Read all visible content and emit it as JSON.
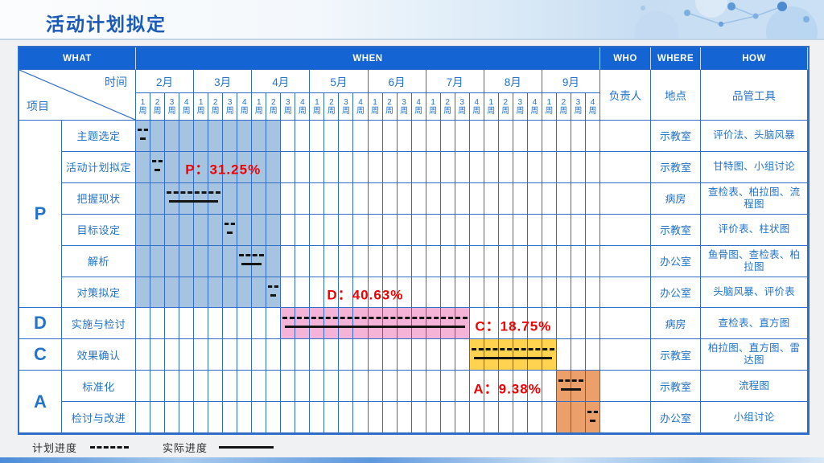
{
  "title": "活动计划拟定",
  "header_band": {
    "what": "WHAT",
    "when": "WHEN",
    "who": "WHO",
    "where": "WHERE",
    "how": "HOW"
  },
  "corner": {
    "time_label": "时间",
    "project_label": "项目"
  },
  "sub_headers": {
    "who": "负责人",
    "where": "地点",
    "how": "品管工具"
  },
  "legend": {
    "plan_label": "计划进度",
    "actual_label": "实际进度"
  },
  "colors": {
    "band_blue": "#1564d4",
    "grid_blue": "#2f6dc6",
    "text_blue": "#2273c9",
    "title_blue": "#1b5ab8",
    "p_shade": "#a6c3df",
    "d_shade": "#f6b3d8",
    "c_shade": "#ffd34f",
    "a_shade": "#eba06b",
    "progress_red": "#ee0202",
    "line_black": "#141414"
  },
  "chart_data": {
    "type": "table",
    "subtype": "gantt",
    "title": "活动计划拟定",
    "months": [
      "2月",
      "3月",
      "4月",
      "5月",
      "6月",
      "7月",
      "8月",
      "9月"
    ],
    "weeks_per_month": 4,
    "week_numbers": [
      "1",
      "2",
      "3",
      "4"
    ],
    "week_suffix": "周",
    "total_weeks": 32,
    "phases": [
      {
        "letter": "P",
        "band_weeks": [
          1,
          10
        ],
        "color_key": "p_shade",
        "task_rows": [
          1,
          6
        ]
      },
      {
        "letter": "D",
        "band_weeks": [
          11,
          23
        ],
        "color_key": "d_shade",
        "task_rows": [
          7,
          7
        ]
      },
      {
        "letter": "C",
        "band_weeks": [
          24,
          29
        ],
        "color_key": "c_shade",
        "task_rows": [
          8,
          8
        ]
      },
      {
        "letter": "A",
        "band_weeks": [
          30,
          32
        ],
        "color_key": "a_shade",
        "task_rows": [
          9,
          10
        ]
      }
    ],
    "tasks": [
      {
        "phase": "P",
        "activity": "主题选定",
        "plan_weeks": [
          1,
          1
        ],
        "actual_weeks": [
          1,
          1
        ],
        "owner": "",
        "place": "示教室",
        "tools": "评价法、头脑风暴"
      },
      {
        "phase": "P",
        "activity": "活动计划拟定",
        "plan_weeks": [
          2,
          2
        ],
        "actual_weeks": [
          2,
          2
        ],
        "owner": "",
        "place": "示教室",
        "tools": "甘特图、小组讨论"
      },
      {
        "phase": "P",
        "activity": "把握现状",
        "plan_weeks": [
          3,
          6
        ],
        "actual_weeks": [
          3,
          6
        ],
        "owner": "",
        "place": "病房",
        "tools": "查检表、柏拉图、流程图"
      },
      {
        "phase": "P",
        "activity": "目标设定",
        "plan_weeks": [
          7,
          7
        ],
        "actual_weeks": [
          7,
          7
        ],
        "owner": "",
        "place": "示教室",
        "tools": "评价表、柱状图"
      },
      {
        "phase": "P",
        "activity": "解析",
        "plan_weeks": [
          8,
          9
        ],
        "actual_weeks": [
          8,
          9
        ],
        "owner": "",
        "place": "办公室",
        "tools": "鱼骨图、查检表、柏拉图"
      },
      {
        "phase": "P",
        "activity": "对策拟定",
        "plan_weeks": [
          10,
          10
        ],
        "actual_weeks": [
          10,
          10
        ],
        "owner": "",
        "place": "办公室",
        "tools": "头脑风暴、评价表"
      },
      {
        "phase": "D",
        "activity": "实施与检讨",
        "plan_weeks": [
          11,
          23
        ],
        "actual_weeks": [
          11,
          23
        ],
        "owner": "",
        "place": "病房",
        "tools": "查检表、直方图"
      },
      {
        "phase": "C",
        "activity": "效果确认",
        "plan_weeks": [
          24,
          29
        ],
        "actual_weeks": [
          24,
          29
        ],
        "owner": "",
        "place": "示教室",
        "tools": "柏拉图、直方图、雷达图"
      },
      {
        "phase": "A",
        "activity": "标准化",
        "plan_weeks": [
          30,
          31
        ],
        "actual_weeks": [
          30,
          31
        ],
        "owner": "",
        "place": "示教室",
        "tools": "流程图"
      },
      {
        "phase": "A",
        "activity": "检讨与改进",
        "plan_weeks": [
          32,
          32
        ],
        "actual_weeks": [
          32,
          32
        ],
        "owner": "",
        "place": "办公室",
        "tools": "小组讨论"
      }
    ],
    "annotations": [
      {
        "text": "P：31.25%",
        "row": 2,
        "center_week": 6.5
      },
      {
        "text": "D：40.63%",
        "row": 6,
        "center_week": 16.3
      },
      {
        "text": "C：18.75%",
        "row": 7,
        "center_week": 26.5
      },
      {
        "text": "A：9.38%",
        "row": 9,
        "center_week": 26.1
      }
    ]
  }
}
